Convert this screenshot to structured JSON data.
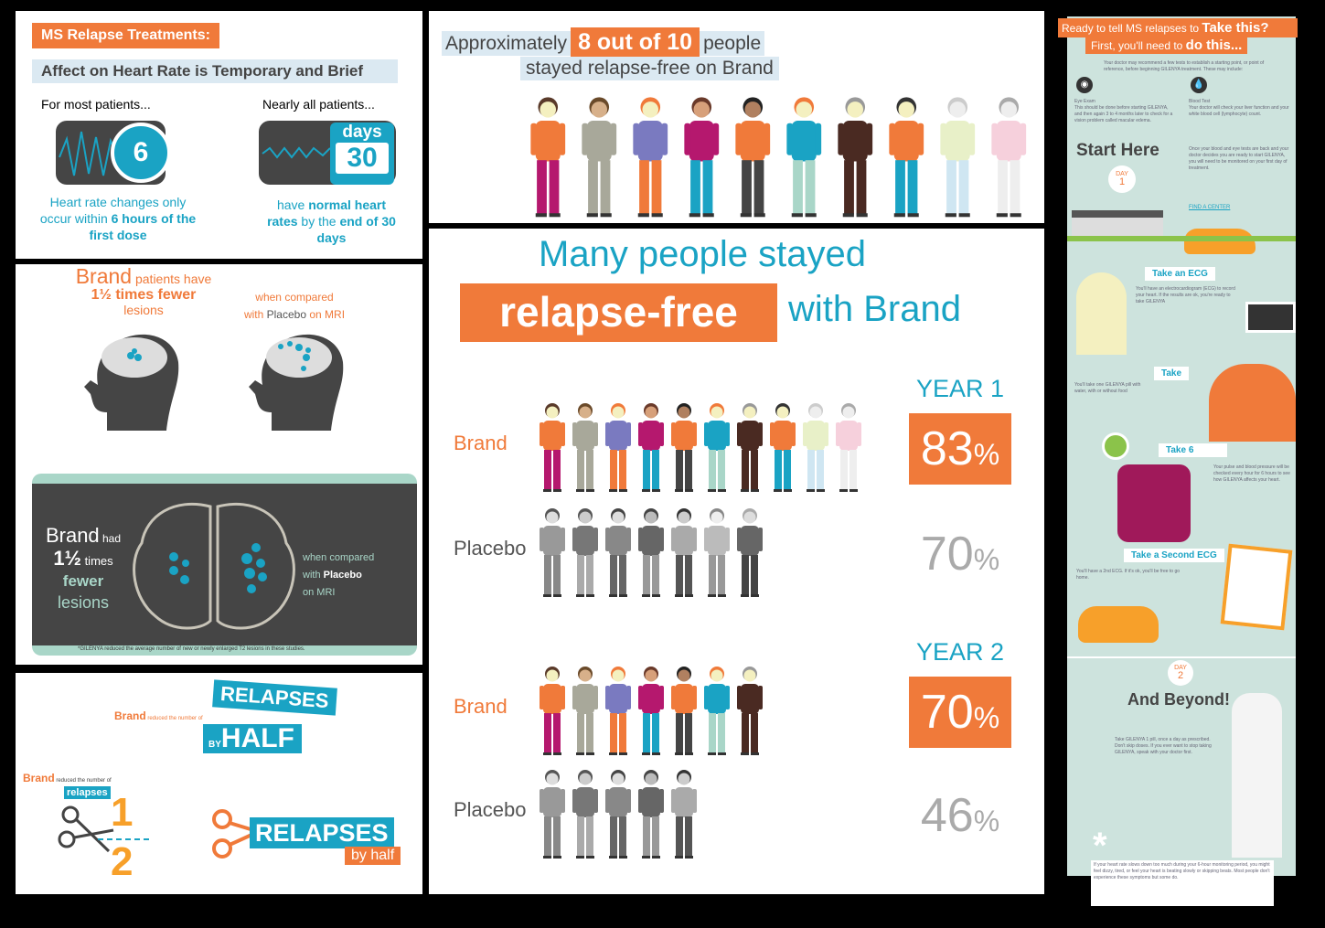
{
  "colors": {
    "orange": "#f07a3a",
    "teal": "#1aa3c4",
    "dark": "#454545",
    "mint": "#cde3dd"
  },
  "heart": {
    "title": "MS Relapse Treatments:",
    "subtitle": "Affect on Heart Rate is Temporary and Brief",
    "left_intro": "For most patients...",
    "left_number": "6",
    "left_text_a": "Heart rate changes only occur within ",
    "left_text_b": "6 hours of the first dose",
    "right_intro": "Nearly all patients...",
    "right_days": "days",
    "right_number": "30",
    "right_text_a": "have ",
    "right_text_b": "normal heart rates",
    "right_text_c": " by the ",
    "right_text_d": "end of 30 days"
  },
  "lesions": {
    "brand": "Brand",
    "line1": " patients have",
    "line2": "1½ times fewer",
    "line3": "lesions",
    "compare1": "when compared",
    "compare2a": "with ",
    "compare2b": "Placebo",
    "compare2c": " on MRI",
    "dark_brand": "Brand",
    "dark_had": " had",
    "dark_times_num": "1½",
    "dark_times": " times",
    "dark_fewer": "fewer",
    "dark_lesions": "lesions",
    "dark_compare1": "when compared",
    "dark_compare2a": "with ",
    "dark_compare2b": "Placebo",
    "dark_compare3": "on MRI",
    "footnote": "*GILENYA reduced the average number of new or newly enlarged T2 lesions in these studies."
  },
  "relapses": {
    "brand": "Brand",
    "reduced": " reduced the number of",
    "word": "RELAPSES",
    "by": "BY",
    "half": "HALF",
    "brand2": "Brand",
    "reduced2": " reduced the number of",
    "tag": "relapses",
    "num1": "1",
    "num2": "2",
    "word2": "RELAPSES",
    "byhalf": "by half"
  },
  "approx": {
    "pre": "Approximately",
    "highlight": "8 out of 10",
    "post": "people",
    "line2": "stayed relapse-free on Brand"
  },
  "relapse_free": {
    "headline": "Many people stayed",
    "highlight": "relapse-free",
    "suffix": "with Brand",
    "rows": [
      {
        "year": "YEAR 1",
        "label": "Brand",
        "value": "83",
        "unit": "%",
        "figures": 10,
        "colored": true
      },
      {
        "label": "Placebo",
        "value": "70",
        "unit": "%",
        "figures": 7,
        "colored": false
      },
      {
        "year": "YEAR 2",
        "label": "Brand",
        "value": "70",
        "unit": "%",
        "figures": 7,
        "colored": true
      },
      {
        "label": "Placebo",
        "value": "46",
        "unit": "%",
        "figures": 5,
        "colored": false
      }
    ]
  },
  "journey": {
    "header1a": "Ready to tell MS relapses to ",
    "header1b": "Take this?",
    "header2a": "First, you'll need to ",
    "header2b": "do this...",
    "intro": "Your doctor may recommend a few tests to establish a starting point, or point of reference, before beginning GILENYA treatment. These may include:",
    "eye_title": "Eye Exam",
    "eye_text": "This should be done before starting GILENYA, and then again 3 to 4 months later to check for a vision problem called macular edema.",
    "blood_title": "Blood Test",
    "blood_text": "Your doctor will check your liver function and your white blood cell (lymphocyte) count.",
    "start": "Start Here",
    "day": "DAY",
    "day1": "1",
    "start_text": "Once your blood and eye tests are back and your doctor decides you are ready to start GILENYA, you will need to be monitored on your first day of treatment.",
    "find": "FIND A CENTER",
    "step1": "Take an ECG",
    "step1_text": "You'll have an electrocardiogram (ECG) to record your heart. If the results are ok, you're ready to take GILENYA",
    "step2": "Take",
    "step2_text": "You'll take one GILENYA pill with water, with or without food",
    "step3": "Take 6",
    "step3_text": "Your pulse and blood pressure will be checked every hour for 6 hours to see how GILENYA affects your heart.",
    "step4": "Take a Second ECG",
    "step4_text": "You'll have a 2nd ECG. If it's ok, you'll be free to go home.",
    "day2": "2",
    "beyond": "And Beyond!",
    "beyond_text": "Take GILENYA 1 pill, once a day as prescribed. Don't skip doses. If you ever want to stop taking GILENYA, speak with your doctor first.",
    "note": "If your heart rate slows down too much during your 6-hour monitoring period, you might feel dizzy, tired, or feel your heart is beating slowly or skipping beats. Most people don't experience these symptoms but some do."
  }
}
